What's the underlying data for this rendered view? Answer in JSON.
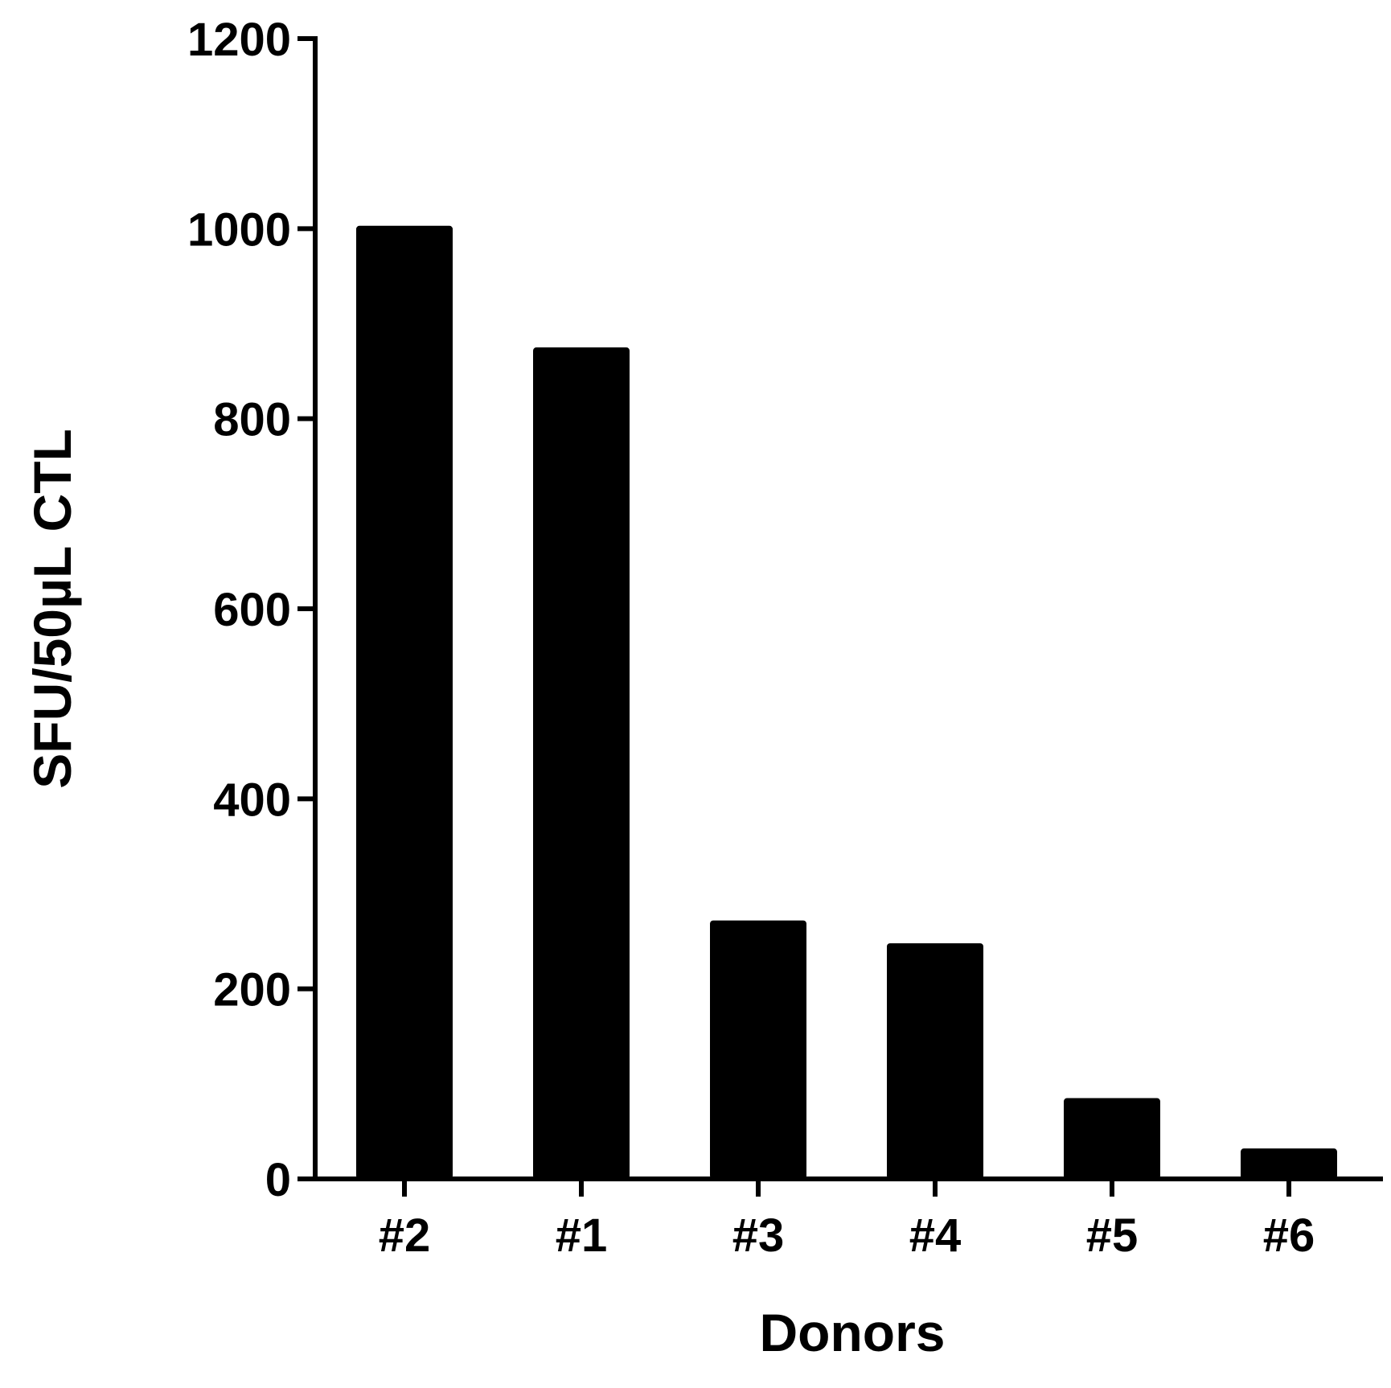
{
  "chart_data": {
    "type": "bar",
    "categories": [
      "#2",
      "#1",
      "#3",
      "#4",
      "#5",
      "#6"
    ],
    "values": [
      1003,
      875,
      272,
      248,
      85,
      32
    ],
    "title": "",
    "xlabel": "Donors",
    "ylabel": "SFU/50µL CTL",
    "ylim": [
      0,
      1200
    ],
    "yticks": [
      0,
      200,
      400,
      600,
      800,
      1000,
      1200
    ],
    "ytick_labels": [
      "0",
      "200",
      "400",
      "600",
      "800",
      "1000",
      "1200"
    ],
    "grid": false,
    "legend": "none",
    "bar_color": "#000000"
  }
}
